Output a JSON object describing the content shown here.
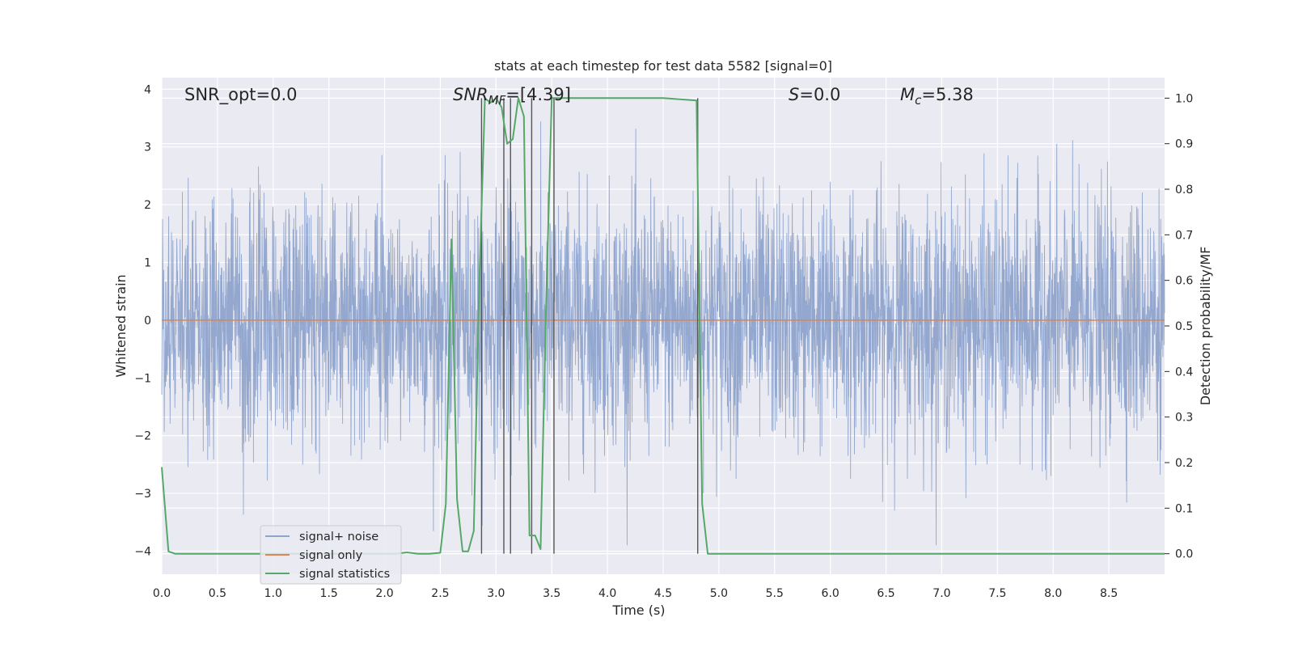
{
  "chart_data": {
    "type": "line",
    "title": "stats at each timestep for test data 5582 [signal=0]",
    "xlabel": "Time (s)",
    "ylabel": "Whitened strain",
    "y2label": "Detection probability/MF",
    "xlim": [
      0,
      9
    ],
    "ylim": [
      -4.4,
      4.2
    ],
    "y2lim": [
      -0.045,
      1.045
    ],
    "xticks": [
      "0.0",
      "0.5",
      "1.0",
      "1.5",
      "2.0",
      "2.5",
      "3.0",
      "3.5",
      "4.0",
      "4.5",
      "5.0",
      "5.5",
      "6.0",
      "6.5",
      "7.0",
      "7.5",
      "8.0",
      "8.5"
    ],
    "yticks": [
      "4",
      "3",
      "2",
      "1",
      "0",
      "−1",
      "−2",
      "−3",
      "−4"
    ],
    "y2ticks": [
      "1.0",
      "0.9",
      "0.8",
      "0.7",
      "0.6",
      "0.5",
      "0.4",
      "0.3",
      "0.2",
      "0.1",
      "0.0"
    ],
    "grid": true,
    "legend_position": "lower-left",
    "colors": {
      "background": "#eaeaf2",
      "noise": "#8fa4cc",
      "signal": "#dd8452",
      "stats": "#55a868",
      "vlines": "#555555",
      "grid": "#ffffff"
    },
    "annotations": {
      "snr_opt": "SNR_opt=0.0",
      "snr_mf_sym": "SNR",
      "snr_mf_sub": "MF",
      "snr_mf_val": "=[4.39]",
      "s_sym": "S",
      "s_val": "=0.0",
      "mc_sym": "M",
      "mc_sub": "c",
      "mc_val": "=5.38"
    },
    "series": [
      {
        "name": "signal+ noise",
        "kind": "noise",
        "envelope_max": 3.9,
        "std": 1.0
      },
      {
        "name": "signal only",
        "x": [
          0,
          9
        ],
        "y": [
          0,
          0
        ]
      },
      {
        "name": "signal statistics",
        "axis": "right",
        "x": [
          0.0,
          0.06,
          0.12,
          0.18,
          2.1,
          2.2,
          2.3,
          2.4,
          2.5,
          2.55,
          2.6,
          2.65,
          2.7,
          2.75,
          2.8,
          2.85,
          2.9,
          2.95,
          3.0,
          3.05,
          3.1,
          3.15,
          3.2,
          3.25,
          3.3,
          3.35,
          3.4,
          3.45,
          3.5,
          3.55,
          3.6,
          4.5,
          4.8,
          4.85,
          4.9,
          4.95,
          9.0
        ],
        "y": [
          0.19,
          0.005,
          0.0,
          0.0,
          0.0,
          0.003,
          0.0,
          0.0,
          0.002,
          0.11,
          0.69,
          0.12,
          0.005,
          0.005,
          0.05,
          0.6,
          1.0,
          0.99,
          1.0,
          0.98,
          0.9,
          0.91,
          1.0,
          0.96,
          0.04,
          0.04,
          0.01,
          0.55,
          1.0,
          1.0,
          1.0,
          1.0,
          0.995,
          0.11,
          0.0,
          0.0,
          0.0
        ]
      }
    ],
    "vlines": [
      2.87,
      3.07,
      3.13,
      3.32,
      3.52,
      4.81
    ]
  }
}
